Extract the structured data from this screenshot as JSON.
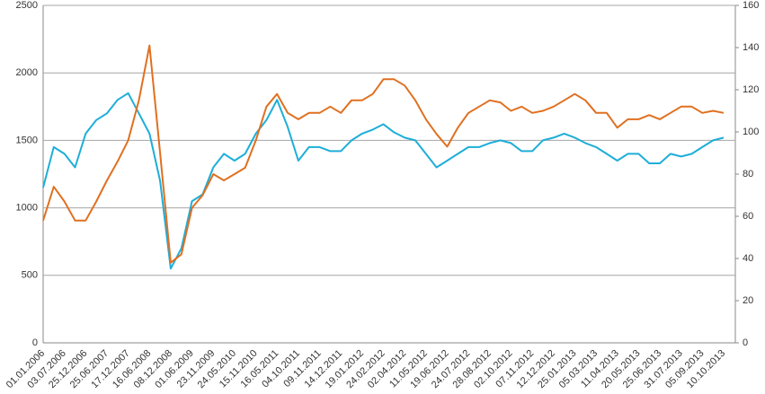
{
  "chart_data": {
    "type": "line",
    "categories": [
      "01.01.2006",
      null,
      "03.07.2006",
      null,
      "25.12.2006",
      null,
      "25.06.2007",
      null,
      "17.12.2007",
      null,
      "16.06.2008",
      null,
      "08.12.2008",
      null,
      "01.06.2009",
      null,
      "23.11.2009",
      null,
      "24.05.2010",
      null,
      "15.11.2010",
      null,
      "16.05.2011",
      null,
      "04.10.2011",
      null,
      "09.11.2011",
      null,
      "14.12.2011",
      null,
      "19.01.2012",
      null,
      "24.02.2012",
      null,
      "02.04.2012",
      null,
      "11.05.2012",
      null,
      "19.06.2012",
      null,
      "24.07.2012",
      null,
      "28.08.2012",
      null,
      "02.10.2012",
      null,
      "07.11.2012",
      null,
      "12.12.2012",
      null,
      "25.01.2013",
      null,
      "05.03.2013",
      null,
      "11.04.2013",
      null,
      "20.05.2013",
      null,
      "25.06.2013",
      null,
      "31.07.2013",
      null,
      "05.09.2013",
      null,
      "10.10.2013"
    ],
    "series": [
      {
        "color": "#1eaed8",
        "values": [
          1150,
          1450,
          1400,
          1300,
          1550,
          1650,
          1700,
          1800,
          1850,
          1700,
          1550,
          1200,
          550,
          700,
          1050,
          1100,
          1300,
          1400,
          1350,
          1400,
          1550,
          1650,
          1800,
          1600,
          1350,
          1450,
          1450,
          1420,
          1420,
          1500,
          1550,
          1580,
          1620,
          1560,
          1520,
          1500,
          1400,
          1300,
          1350,
          1400,
          1450,
          1450,
          1480,
          1500,
          1480,
          1420,
          1420,
          1500,
          1520,
          1550,
          1520,
          1480,
          1450,
          1400,
          1350,
          1400,
          1400,
          1330,
          1330,
          1400,
          1380,
          1400,
          1450,
          1500,
          1520
        ]
      },
      {
        "color": "#e07020",
        "axis": "y2",
        "values": [
          58,
          74,
          67,
          58,
          58,
          67,
          77,
          86,
          96,
          115,
          141,
          90,
          38,
          42,
          64,
          70,
          80,
          77,
          80,
          83,
          96,
          112,
          118,
          109,
          106,
          109,
          109,
          112,
          109,
          115,
          115,
          118,
          125,
          125,
          122,
          115,
          106,
          99,
          93,
          102,
          109,
          112,
          115,
          114,
          110,
          112,
          109,
          110,
          112,
          115,
          118,
          115,
          109,
          109,
          102,
          106,
          106,
          108,
          106,
          109,
          112,
          112,
          109,
          110,
          109
        ]
      }
    ],
    "ylim": [
      0,
      2500
    ],
    "yticks": [
      0,
      500,
      1000,
      1500,
      2000,
      2500
    ],
    "y2lim": [
      0,
      160
    ],
    "y2ticks": [
      0,
      20,
      40,
      60,
      80,
      100,
      120,
      140,
      160
    ],
    "grid": true
  }
}
